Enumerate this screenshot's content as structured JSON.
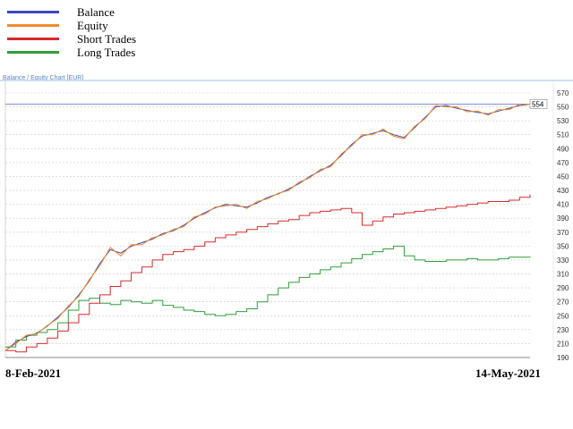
{
  "legend": [
    {
      "label": "Balance",
      "color": "#3b47c0"
    },
    {
      "label": "Equity",
      "color": "#f08a2c"
    },
    {
      "label": "Short Trades",
      "color": "#d62a2a"
    },
    {
      "label": "Long Trades",
      "color": "#2f9e3a"
    }
  ],
  "chart": {
    "title": "Balance / Equity Chart [EUR]",
    "start_date": "8-Feb-2021",
    "end_date": "14-May-2021",
    "current_value": "554"
  },
  "chart_data": {
    "type": "line",
    "title": "Balance / Equity Chart [EUR]",
    "x_range": [
      "8-Feb-2021",
      "14-May-2021"
    ],
    "ylim": [
      190,
      570
    ],
    "yticks": [
      190,
      210,
      230,
      250,
      270,
      290,
      310,
      330,
      350,
      370,
      390,
      410,
      430,
      450,
      470,
      490,
      510,
      530,
      550,
      570
    ],
    "grid": true,
    "legend_position": "top-left",
    "current_value": 554,
    "series": [
      {
        "name": "Balance",
        "color": "#3b47c0",
        "values": [
          200,
          212,
          220,
          225,
          235,
          248,
          262,
          280,
          300,
          325,
          345,
          340,
          350,
          355,
          360,
          368,
          372,
          380,
          390,
          398,
          405,
          410,
          408,
          406,
          412,
          420,
          425,
          432,
          440,
          450,
          458,
          466,
          480,
          496,
          508,
          512,
          516,
          510,
          506,
          520,
          535,
          550,
          552,
          548,
          545,
          542,
          540,
          544,
          548,
          552,
          554
        ]
      },
      {
        "name": "Equity",
        "color": "#f08a2c",
        "values": [
          200,
          210,
          222,
          224,
          236,
          246,
          264,
          278,
          302,
          322,
          348,
          336,
          352,
          352,
          362,
          366,
          374,
          378,
          392,
          396,
          406,
          408,
          410,
          404,
          414,
          418,
          426,
          430,
          442,
          448,
          460,
          464,
          482,
          494,
          510,
          510,
          518,
          508,
          504,
          522,
          533,
          552,
          550,
          550,
          543,
          544,
          538,
          546,
          546,
          554,
          554
        ]
      },
      {
        "name": "Short Trades",
        "color": "#d62a2a",
        "values": [
          200,
          198,
          205,
          210,
          218,
          228,
          240,
          252,
          268,
          280,
          292,
          300,
          312,
          320,
          330,
          338,
          342,
          345,
          350,
          356,
          362,
          366,
          370,
          374,
          378,
          382,
          386,
          388,
          394,
          398,
          400,
          402,
          404,
          398,
          380,
          386,
          392,
          396,
          398,
          400,
          402,
          404,
          406,
          408,
          410,
          412,
          414,
          414,
          416,
          420,
          424
        ]
      },
      {
        "name": "Long Trades",
        "color": "#2f9e3a",
        "values": [
          205,
          215,
          222,
          226,
          230,
          240,
          258,
          272,
          275,
          268,
          266,
          272,
          270,
          268,
          272,
          265,
          262,
          258,
          256,
          252,
          250,
          252,
          256,
          260,
          270,
          280,
          290,
          298,
          305,
          310,
          316,
          320,
          326,
          332,
          338,
          342,
          346,
          350,
          336,
          330,
          328,
          328,
          330,
          330,
          332,
          330,
          330,
          332,
          334,
          334,
          335
        ]
      }
    ]
  }
}
